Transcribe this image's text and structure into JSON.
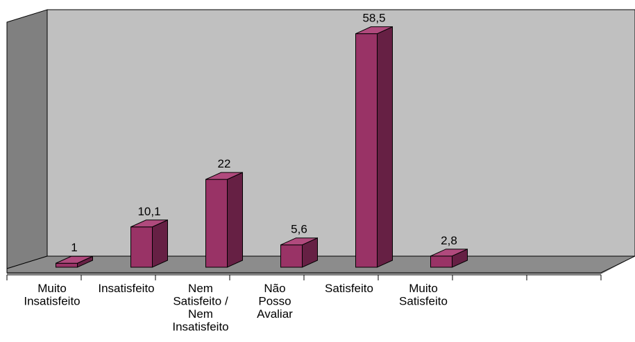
{
  "chart_data": {
    "type": "bar",
    "style": "3d-column",
    "categories": [
      [
        "Muito",
        "Insatisfeito"
      ],
      [
        "Insatisfeito"
      ],
      [
        "Nem",
        "Satisfeito /",
        "Nem",
        "Insatisfeito"
      ],
      [
        "Não",
        "Posso",
        "Avaliar"
      ],
      [
        "Satisfeito"
      ],
      [
        "Muito",
        "Satisfeito"
      ]
    ],
    "values": [
      1,
      10.1,
      22,
      5.6,
      58.5,
      2.8
    ],
    "value_labels": [
      "1",
      "10,1",
      "22",
      "5,6",
      "58,5",
      "2,8"
    ],
    "ylim": [
      0,
      60
    ],
    "grid": false,
    "legend": "none",
    "title": "",
    "xlabel": "",
    "ylabel": "",
    "colors": {
      "bar_front": "#993366",
      "bar_side": "#662044",
      "bar_top": "#b04a7d",
      "back_wall": "#c0c0c0",
      "side_wall": "#808080",
      "floor": "#8c8c8c"
    }
  }
}
